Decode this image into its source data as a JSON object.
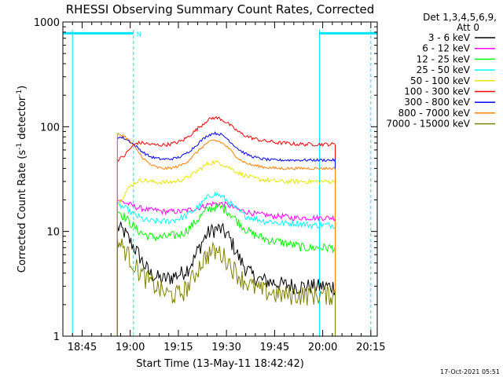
{
  "chart_data": {
    "type": "line",
    "title": "RHESSI Observing Summary Count Rates, Corrected",
    "xlabel": "Start Time (13-May-11 18:42:42)",
    "ylabel": "Corrected Count Rate (s",
    "ylabel_sup1": "-1",
    "ylabel_mid": " detector",
    "ylabel_sup2": "-1",
    "ylabel_end": ")",
    "y_scale": "log",
    "ylim": [
      1,
      1000
    ],
    "xlim_minutes": [
      -3,
      95
    ],
    "x_ticks": [
      {
        "t": 3,
        "label": "18:45"
      },
      {
        "t": 18,
        "label": "19:00"
      },
      {
        "t": 33,
        "label": "19:15"
      },
      {
        "t": 48,
        "label": "19:30"
      },
      {
        "t": 63,
        "label": "19:45"
      },
      {
        "t": 78,
        "label": "20:00"
      },
      {
        "t": 93,
        "label": "20:15"
      }
    ],
    "y_ticks": [
      {
        "v": 1,
        "label": "1"
      },
      {
        "v": 10,
        "label": "10"
      },
      {
        "v": 100,
        "label": "100"
      },
      {
        "v": 1000,
        "label": "1000"
      }
    ],
    "legend_header": "Det 1,3,4,5,6,9,",
    "legend_header2": "Att 0",
    "legend_position": "top-right",
    "time_step_minutes": 2,
    "data_start_minutes": 14,
    "data_end_minutes": 82,
    "series": [
      {
        "name": "3 - 6 keV",
        "color": "#000000",
        "values": [
          11,
          10,
          8,
          6.5,
          5,
          4,
          3.7,
          3.5,
          3.6,
          3.8,
          4,
          4.5,
          5.5,
          7.5,
          9.5,
          10.5,
          10.5,
          9.5,
          7.5,
          5.5,
          4.5,
          3.8,
          3.5,
          3.4,
          3.3,
          3.2,
          3.1,
          3.1,
          3.0,
          3.0,
          3.0,
          3.0,
          3.0,
          3.0,
          3.0
        ]
      },
      {
        "name": "6 - 12 keV",
        "color": "#ff00ff",
        "values": [
          20,
          19,
          18,
          17,
          16.5,
          16,
          16,
          15.5,
          15.5,
          15.5,
          15.5,
          16,
          16.5,
          17,
          18,
          18.5,
          18.5,
          18,
          17,
          16,
          15.5,
          15,
          14.5,
          14.5,
          14,
          14,
          14,
          13.5,
          13.5,
          13.5,
          13.5,
          13.5,
          13.5,
          13.5,
          13.5
        ]
      },
      {
        "name": "12 - 25 keV",
        "color": "#00ff00",
        "values": [
          16,
          14,
          12,
          10.5,
          9.5,
          9,
          8.8,
          8.8,
          9,
          9.2,
          9.5,
          10.5,
          12,
          14,
          16,
          17,
          17,
          16,
          14,
          12,
          10.5,
          9.5,
          9,
          8.5,
          8.2,
          8,
          7.8,
          7.5,
          7.3,
          7,
          7,
          7,
          7,
          7,
          7
        ]
      },
      {
        "name": "25 - 50 keV",
        "color": "#00ffff",
        "values": [
          18,
          17,
          15.5,
          14,
          13,
          12.5,
          12.5,
          12.5,
          12.5,
          13,
          13.5,
          14.5,
          16,
          18,
          21,
          23,
          22,
          20,
          17.5,
          15.5,
          14,
          13.5,
          13,
          12.5,
          12.5,
          12,
          12,
          12,
          12,
          11.8,
          11.5,
          11.5,
          11.5,
          11.5,
          11.5
        ]
      },
      {
        "name": "50 - 100 keV",
        "color": "#e6e600",
        "values": [
          18,
          22,
          27,
          30,
          31,
          30,
          29.5,
          29.5,
          29.5,
          30,
          31,
          33,
          36,
          40,
          44,
          46,
          45,
          42,
          39,
          36,
          34,
          32.5,
          31.5,
          31,
          30.5,
          30,
          30,
          30,
          30,
          30,
          30,
          30,
          30,
          30,
          30
        ]
      },
      {
        "name": "100 - 300 keV",
        "color": "#ff0000",
        "values": [
          48,
          52,
          62,
          70,
          70,
          68,
          67,
          67,
          68,
          70,
          73,
          80,
          90,
          102,
          115,
          122,
          120,
          110,
          98,
          88,
          82,
          78,
          75,
          73,
          72,
          70,
          70,
          69,
          68,
          68,
          68,
          68,
          68,
          68,
          68
        ]
      },
      {
        "name": "300 - 800 keV",
        "color": "#0000ff",
        "values": [
          80,
          78,
          72,
          64,
          57,
          52,
          50,
          49,
          49,
          50,
          52,
          57,
          64,
          73,
          82,
          87,
          85,
          78,
          68,
          60,
          55,
          52,
          50,
          49,
          48,
          48,
          48,
          48,
          48,
          48,
          48,
          48,
          48,
          48,
          48
        ]
      },
      {
        "name": "800 - 7000 keV",
        "color": "#ff8000",
        "values": [
          85,
          82,
          72,
          60,
          50,
          44,
          41,
          40,
          40,
          41,
          43,
          47,
          54,
          62,
          70,
          74,
          72,
          65,
          56,
          49,
          45,
          43,
          42,
          41,
          40.5,
          40,
          40,
          40,
          40,
          40,
          40,
          40,
          40,
          40,
          40
        ]
      },
      {
        "name": "7000 - 15000 keV",
        "color": "#808000",
        "values": [
          8,
          7,
          5.5,
          4.5,
          3.8,
          3.3,
          3,
          2.7,
          2.5,
          2.5,
          2.6,
          3,
          3.8,
          5,
          6,
          6.5,
          6.3,
          5.5,
          4.5,
          3.8,
          3.3,
          3,
          2.8,
          2.7,
          2.6,
          2.5,
          2.5,
          2.5,
          2.5,
          2.5,
          2.5,
          2.5,
          2.5,
          2.5,
          2.5
        ]
      }
    ],
    "annotations": [
      {
        "type": "night-bar",
        "start": -3,
        "end": 19,
        "value": 780
      },
      {
        "type": "night-bar",
        "start": 77,
        "end": 95,
        "value": 780
      }
    ],
    "annotation_label": "N",
    "timestamp": "17-Oct-2021 05:51"
  }
}
